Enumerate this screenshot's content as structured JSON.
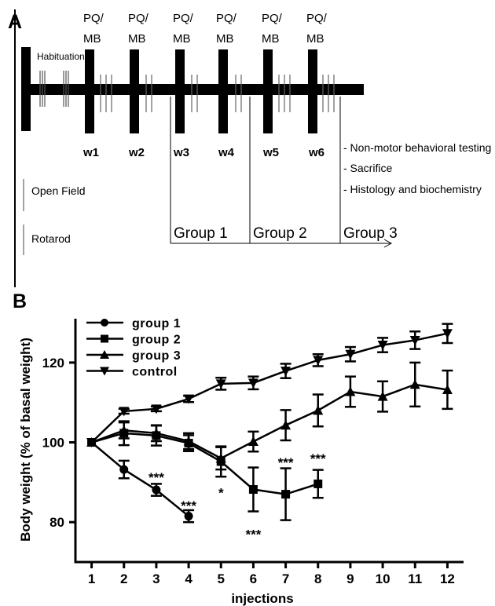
{
  "panel_a": {
    "letter": "A",
    "injection_label_line1": "PQ/",
    "injection_label_line2": "MB",
    "habituation_label": "Habituation",
    "weeks": [
      "w1",
      "w2",
      "w3",
      "w4",
      "w5",
      "w6"
    ],
    "final_steps": [
      "- Non-motor behavioral testing",
      "- Sacrifice",
      "- Histology and biochemistry"
    ],
    "test_legend": [
      "Open Field",
      "Rotarod"
    ],
    "groups": [
      "Group 1",
      "Group 2",
      "Group 3"
    ]
  },
  "panel_b": {
    "letter": "B"
  },
  "chart_data": {
    "type": "line",
    "title": "",
    "xlabel": "injections",
    "ylabel": "Body weight (% of basal weight)",
    "x_ticks": [
      "1",
      "2",
      "3",
      "4",
      "5",
      "6",
      "7",
      "8",
      "9",
      "10",
      "11",
      "12"
    ],
    "y_ticks": [
      "80",
      "100",
      "120"
    ],
    "xlim": [
      0.5,
      12.5
    ],
    "ylim": [
      70,
      131
    ],
    "legend_position": "top-left",
    "series": [
      {
        "name": "group 1",
        "marker": "circle",
        "x": [
          1,
          2,
          3,
          4
        ],
        "y": [
          100,
          93.2,
          88.1,
          81.5
        ],
        "err": [
          0,
          2.2,
          1.5,
          1.5
        ]
      },
      {
        "name": "group 2",
        "marker": "square",
        "x": [
          1,
          2,
          3,
          4,
          5,
          6,
          7,
          8
        ],
        "y": [
          100,
          102.3,
          101.7,
          99.8,
          95.2,
          88.2,
          87.0,
          89.6
        ],
        "err": [
          0,
          3.0,
          2.5,
          2.0,
          3.8,
          5.5,
          6.5,
          3.5
        ]
      },
      {
        "name": "group 3",
        "marker": "triangle-up",
        "x": [
          1,
          2,
          3,
          4,
          5,
          6,
          7,
          8,
          9,
          10,
          11,
          12
        ],
        "y": [
          100,
          103.0,
          102.3,
          100.3,
          96.0,
          100.2,
          104.3,
          108.0,
          112.7,
          111.5,
          114.5,
          113.2
        ],
        "err": [
          0,
          2.0,
          2.0,
          2.0,
          2.8,
          2.5,
          3.8,
          4.0,
          3.8,
          3.8,
          5.5,
          4.8
        ]
      },
      {
        "name": "control",
        "marker": "triangle-down",
        "x": [
          1,
          2,
          3,
          4,
          5,
          6,
          7,
          8,
          9,
          10,
          11,
          12
        ],
        "y": [
          100,
          107.8,
          108.4,
          110.9,
          114.7,
          114.9,
          117.9,
          120.6,
          122.1,
          124.4,
          125.6,
          127.3
        ],
        "err": [
          0,
          0.6,
          0.6,
          0.8,
          1.5,
          1.6,
          1.8,
          1.5,
          1.8,
          1.8,
          2.2,
          2.4
        ]
      }
    ],
    "annotations": [
      {
        "text": "***",
        "x": 3,
        "y": 91.6
      },
      {
        "text": "***",
        "x": 4,
        "y": 84.6
      },
      {
        "text": "*",
        "x": 5,
        "y": 87.8
      },
      {
        "text": "***",
        "x": 6,
        "y": 77.4
      },
      {
        "text": "***",
        "x": 7,
        "y": 95.4
      },
      {
        "text": "***",
        "x": 8,
        "y": 96.4
      }
    ]
  }
}
